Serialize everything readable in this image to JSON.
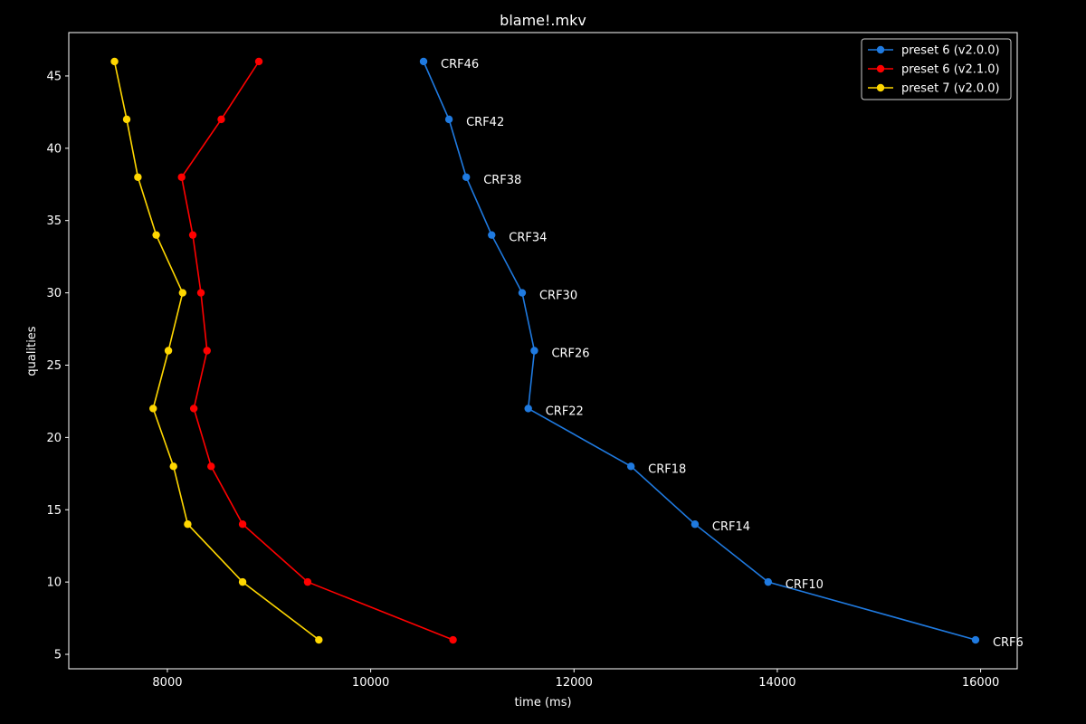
{
  "chart_data": {
    "type": "line",
    "title": "blame!.mkv",
    "xlabel": "time (ms)",
    "ylabel": "qualities",
    "xlim": [
      7030,
      16360
    ],
    "ylim": [
      4,
      48
    ],
    "xticks": [
      8000,
      10000,
      12000,
      14000,
      16000
    ],
    "yticks": [
      5,
      10,
      15,
      20,
      25,
      30,
      35,
      40,
      45
    ],
    "legend_position": "top-right",
    "grid": false,
    "background": "#000000",
    "series": [
      {
        "name": "preset 6 (v2.0.0)",
        "color": "#1f7ae0",
        "points": [
          {
            "x": 10520,
            "y": 46,
            "label": "CRF46"
          },
          {
            "x": 10770,
            "y": 42,
            "label": "CRF42"
          },
          {
            "x": 10940,
            "y": 38,
            "label": "CRF38"
          },
          {
            "x": 11190,
            "y": 34,
            "label": "CRF34"
          },
          {
            "x": 11490,
            "y": 30,
            "label": "CRF30"
          },
          {
            "x": 11610,
            "y": 26,
            "label": "CRF26"
          },
          {
            "x": 11550,
            "y": 22,
            "label": "CRF22"
          },
          {
            "x": 12560,
            "y": 18,
            "label": "CRF18"
          },
          {
            "x": 13190,
            "y": 14,
            "label": "CRF14"
          },
          {
            "x": 13910,
            "y": 10,
            "label": "CRF10"
          },
          {
            "x": 15950,
            "y": 6,
            "label": "CRF6"
          }
        ]
      },
      {
        "name": "preset 6 (v2.1.0)",
        "color": "#ff0000",
        "points": [
          {
            "x": 8900,
            "y": 46
          },
          {
            "x": 8530,
            "y": 42
          },
          {
            "x": 8140,
            "y": 38
          },
          {
            "x": 8250,
            "y": 34
          },
          {
            "x": 8330,
            "y": 30
          },
          {
            "x": 8390,
            "y": 26
          },
          {
            "x": 8260,
            "y": 22
          },
          {
            "x": 8430,
            "y": 18
          },
          {
            "x": 8740,
            "y": 14
          },
          {
            "x": 9380,
            "y": 10
          },
          {
            "x": 10810,
            "y": 6
          }
        ]
      },
      {
        "name": "preset 7 (v2.0.0)",
        "color": "#ffd700",
        "points": [
          {
            "x": 7480,
            "y": 46
          },
          {
            "x": 7600,
            "y": 42
          },
          {
            "x": 7710,
            "y": 38
          },
          {
            "x": 7890,
            "y": 34
          },
          {
            "x": 8150,
            "y": 30
          },
          {
            "x": 8010,
            "y": 26
          },
          {
            "x": 7860,
            "y": 22
          },
          {
            "x": 8060,
            "y": 18
          },
          {
            "x": 8200,
            "y": 14
          },
          {
            "x": 8740,
            "y": 10
          },
          {
            "x": 9490,
            "y": 6
          }
        ]
      }
    ]
  }
}
